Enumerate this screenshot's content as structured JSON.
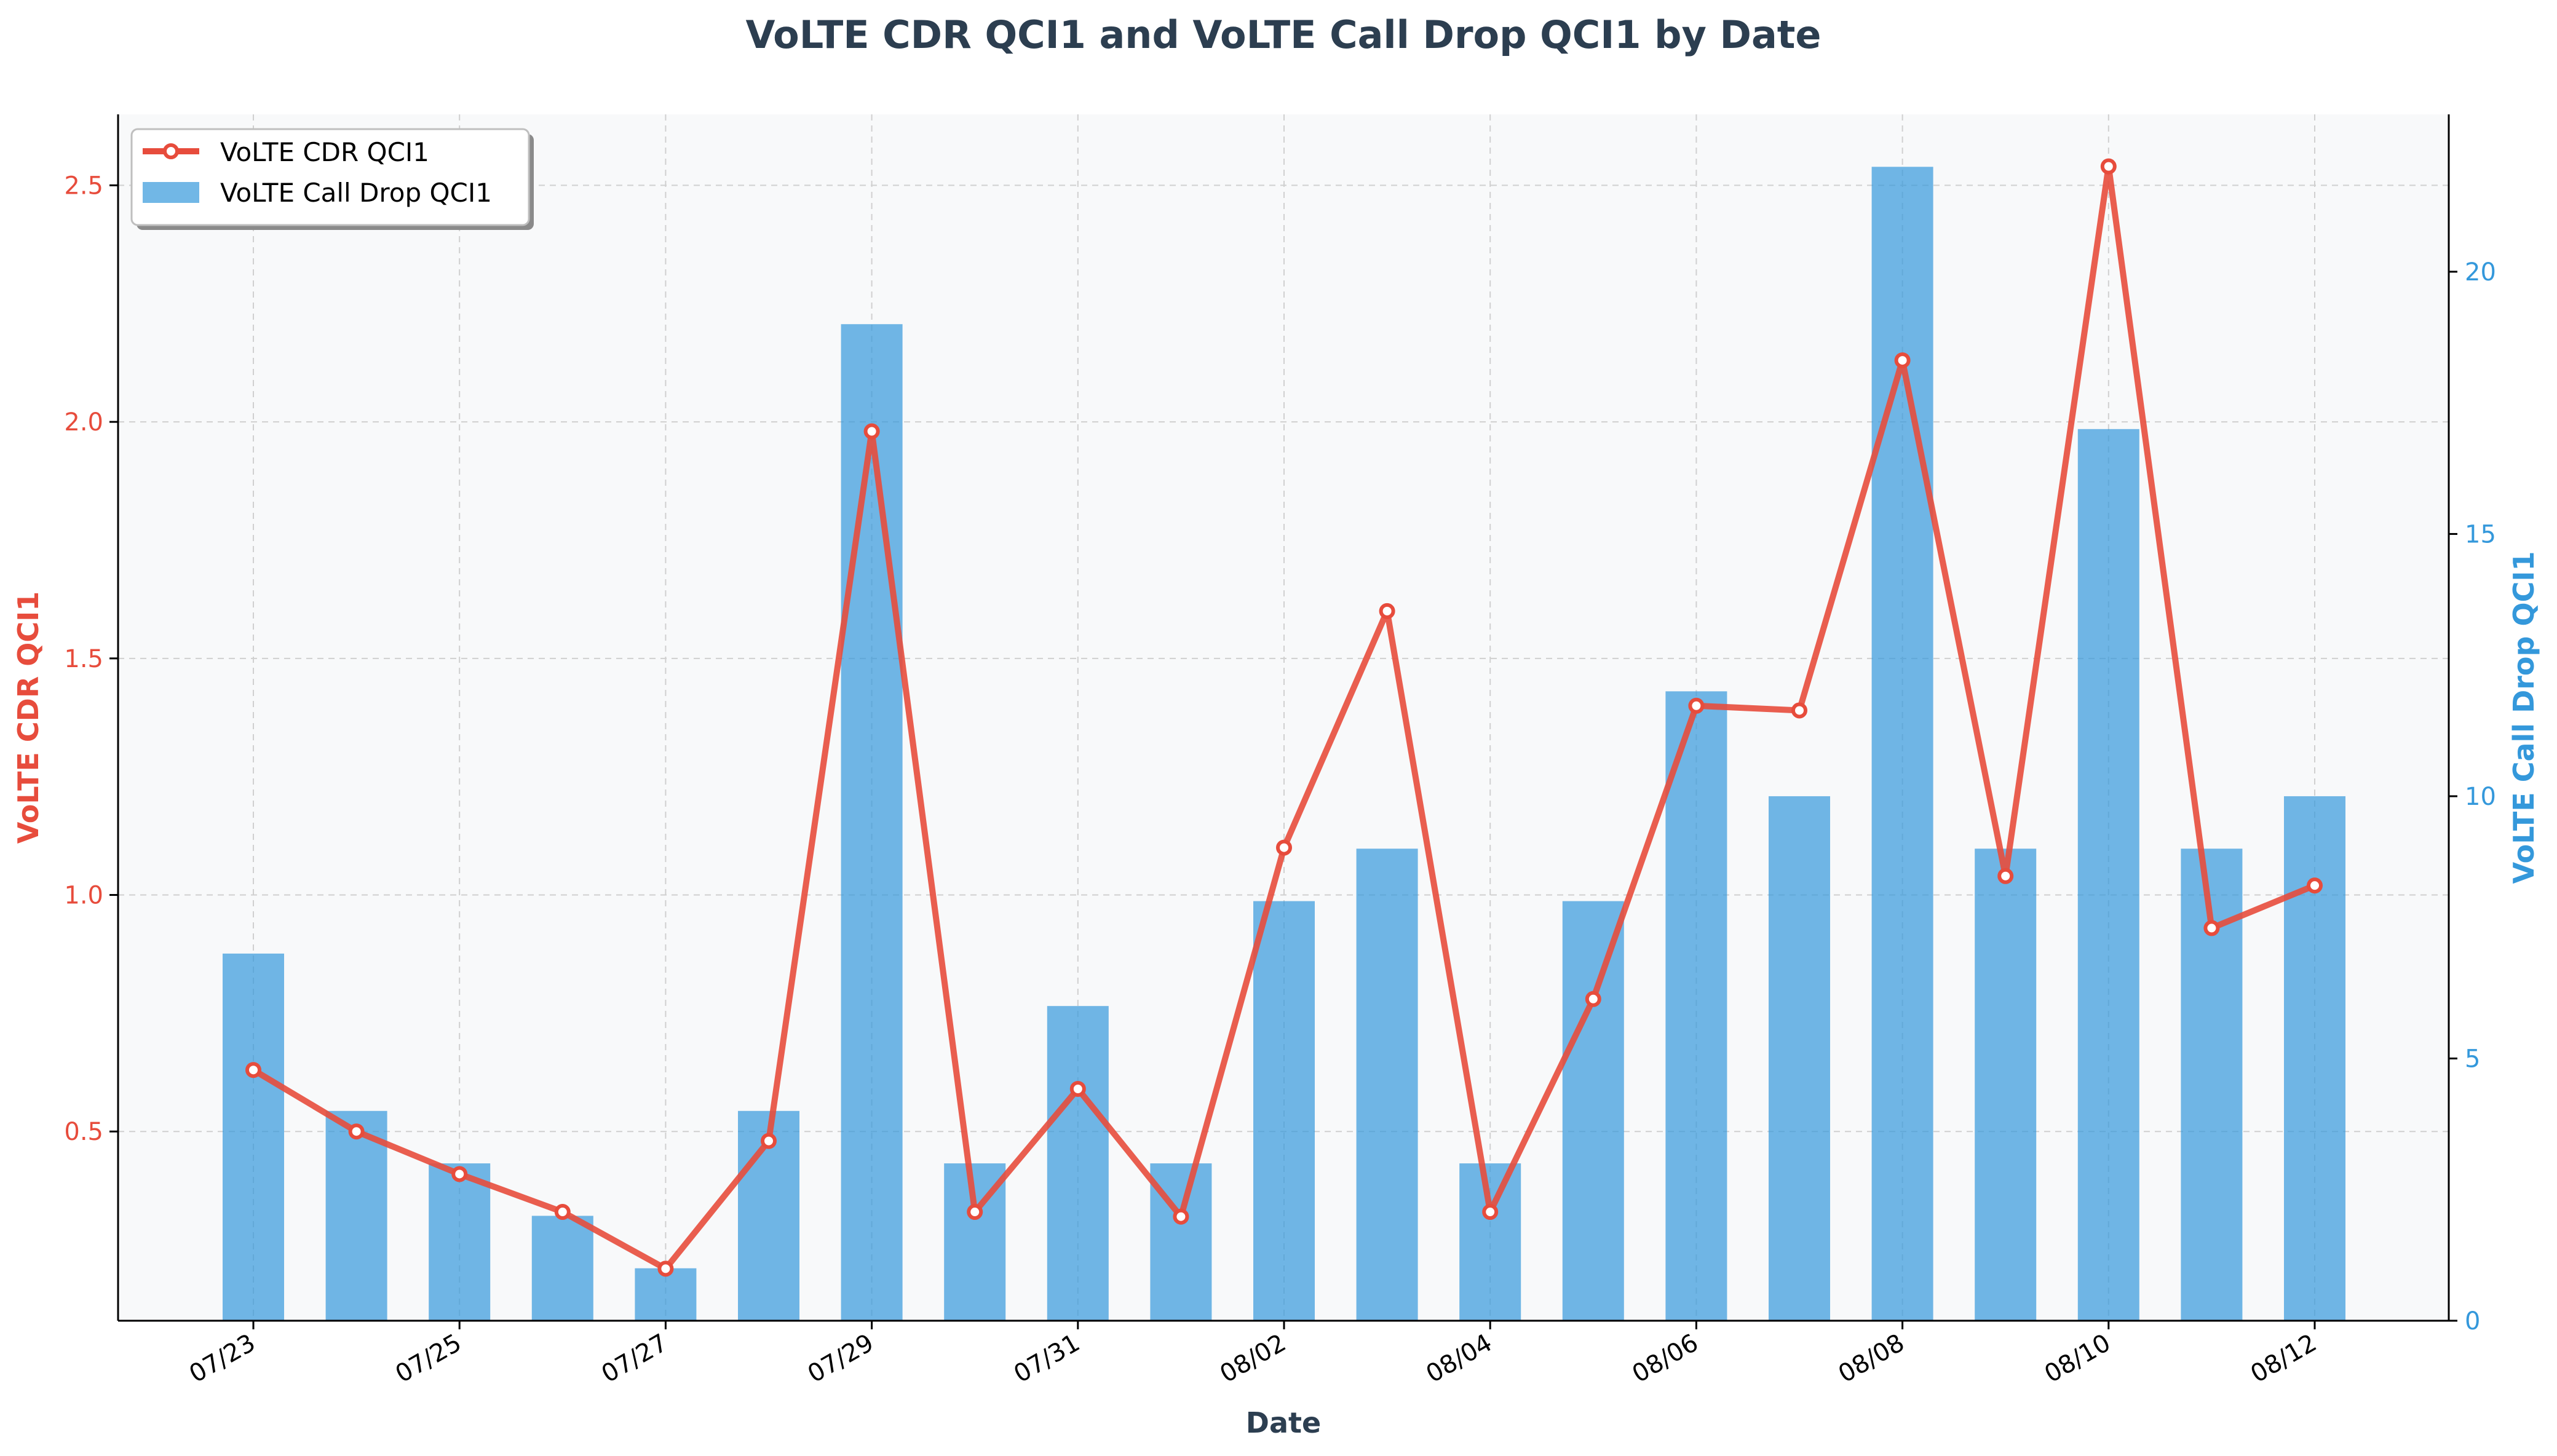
{
  "chart_data": {
    "type": "bar+line",
    "title": "VoLTE CDR QCI1 and VoLTE Call Drop QCI1 by Date",
    "xlabel": "Date",
    "ylabel_left": "VoLTE CDR QCI1",
    "ylabel_right": "VoLTE Call Drop QCI1",
    "categories": [
      "07/23",
      "07/24",
      "07/25",
      "07/26",
      "07/27",
      "07/28",
      "07/29",
      "07/30",
      "07/31",
      "08/01",
      "08/02",
      "08/03",
      "08/04",
      "08/05",
      "08/06",
      "08/07",
      "08/08",
      "08/09",
      "08/10",
      "08/11",
      "08/12"
    ],
    "x_tick_labels": [
      "07/23",
      "07/25",
      "07/27",
      "07/29",
      "07/31",
      "08/02",
      "08/04",
      "08/06",
      "08/08",
      "08/10",
      "08/12"
    ],
    "series": [
      {
        "name": "VoLTE CDR QCI1",
        "kind": "line",
        "axis": "left",
        "color": "#e74c3c",
        "values": [
          0.63,
          0.5,
          0.41,
          0.33,
          0.21,
          0.48,
          1.98,
          0.33,
          0.59,
          0.32,
          1.1,
          1.6,
          0.33,
          0.78,
          1.4,
          1.39,
          2.13,
          1.04,
          2.54,
          0.93,
          1.02
        ]
      },
      {
        "name": "VoLTE Call Drop QCI1",
        "kind": "bar",
        "axis": "right",
        "color": "#3498db",
        "values": [
          7,
          4,
          3,
          2,
          1,
          4,
          19,
          3,
          6,
          3,
          8,
          9,
          3,
          8,
          12,
          10,
          22,
          9,
          17,
          9,
          10
        ]
      }
    ],
    "ylim_left": [
      0.1,
      2.65
    ],
    "yticks_left": [
      "0.5",
      "1.0",
      "1.5",
      "2.0",
      "2.5"
    ],
    "ylim_right": [
      0,
      23
    ],
    "yticks_right": [
      "0",
      "5",
      "10",
      "15",
      "20"
    ],
    "grid": true,
    "legend_position": "top-left"
  }
}
